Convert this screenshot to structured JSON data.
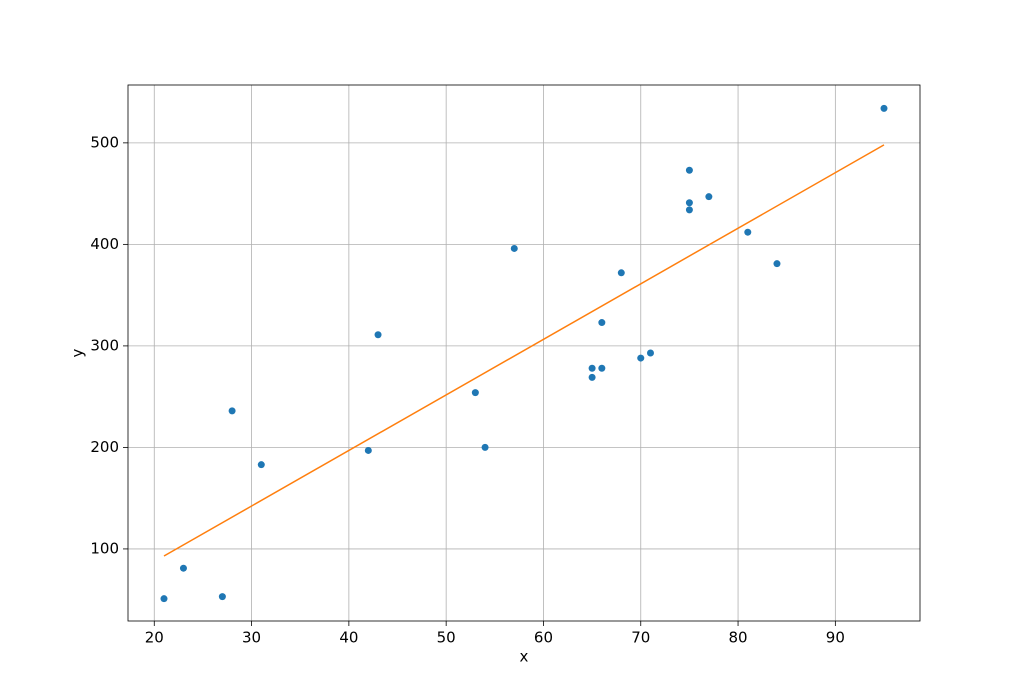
{
  "chart_data": {
    "type": "scatter",
    "xlabel": "x",
    "ylabel": "y",
    "series": [
      {
        "type": "scatter",
        "color": "#1f77b4",
        "x": [
          21,
          23,
          27,
          28,
          31,
          42,
          43,
          53,
          54,
          57,
          65,
          65,
          66,
          66,
          68,
          70,
          71,
          75,
          75,
          75,
          77,
          81,
          84,
          95
        ],
        "values": [
          51,
          81,
          53,
          236,
          183,
          197,
          311,
          254,
          200,
          396,
          278,
          269,
          278,
          323,
          372,
          288,
          293,
          473,
          441,
          434,
          447,
          412,
          381,
          534
        ]
      },
      {
        "type": "line",
        "color": "#ff7f0e",
        "x": [
          21,
          95
        ],
        "values": [
          93,
          498
        ]
      }
    ],
    "xlim": [
      17.3,
      98.7
    ],
    "ylim": [
      29,
      557
    ],
    "xticks": [
      20,
      30,
      40,
      50,
      60,
      70,
      80,
      90
    ],
    "yticks": [
      100,
      200,
      300,
      400,
      500
    ],
    "grid": true
  }
}
